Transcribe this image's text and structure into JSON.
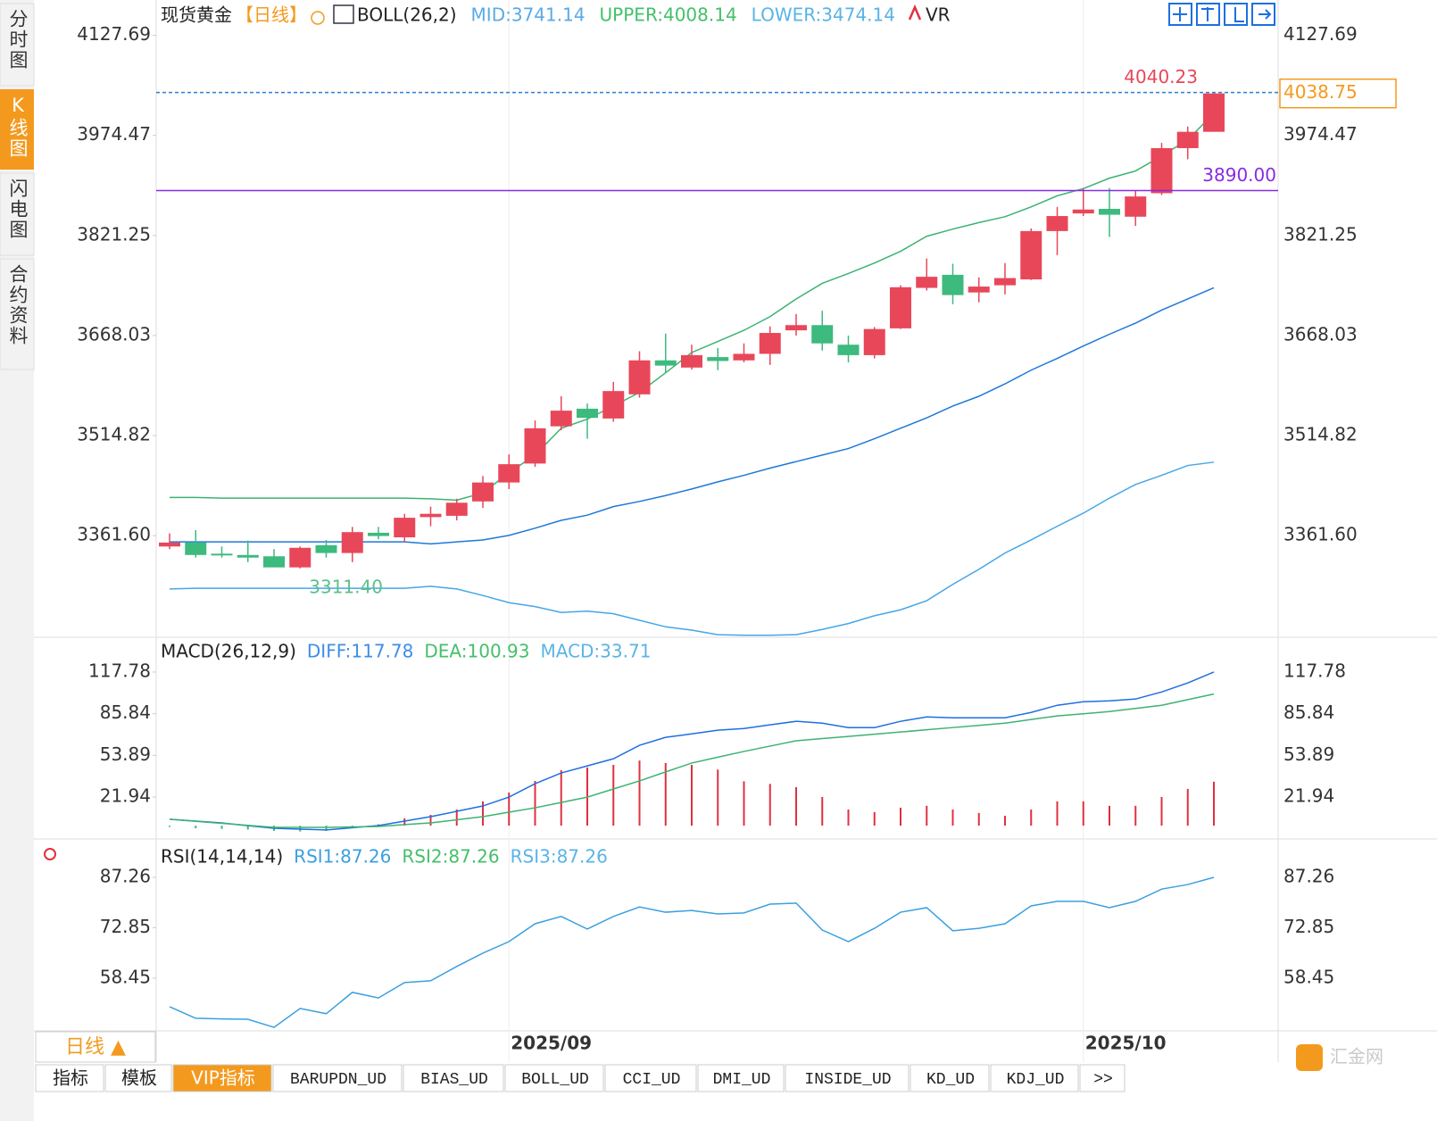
{
  "ui": {
    "sidebar": [
      "分时图",
      "K线图",
      "闪电图",
      "合约资料"
    ],
    "period_button": "日线 ▲",
    "tabs": [
      "指标",
      "模板",
      "VIP指标",
      "BARUPDN_UD",
      "BIAS_UD",
      "BOLL_UD",
      "CCI_UD",
      "DMI_UD",
      "INSIDE_UD",
      "KD_UD",
      "KDJ_UD",
      ">>"
    ],
    "watermark": "汇金网"
  },
  "chart_data": [
    {
      "type": "candlestick",
      "title": "现货黄金",
      "period": "【日线】",
      "indicator": "BOLL(26,2)",
      "extra": "VR",
      "categories": [
        null,
        null,
        null,
        null,
        null,
        null,
        null,
        null,
        null,
        null,
        null,
        null,
        null,
        "2025/09",
        null,
        null,
        null,
        null,
        null,
        null,
        null,
        null,
        null,
        null,
        null,
        null,
        null,
        null,
        null,
        null,
        null,
        null,
        null,
        null,
        null,
        "2025/10",
        null,
        null,
        null,
        null,
        null
      ],
      "open": [
        3345,
        3351,
        3334,
        3332,
        3330,
        3313,
        3347,
        3335,
        3366,
        3359,
        3390,
        3392,
        3414,
        3443,
        3472,
        3529,
        3556,
        3541,
        3578,
        3630,
        3619,
        3635,
        3630,
        3640,
        3676,
        3684,
        3654,
        3638,
        3679,
        3741,
        3761,
        3734,
        3745,
        3754,
        3828,
        3855,
        3862,
        3850,
        3886,
        3955,
        3980
      ],
      "high": [
        3365,
        3370,
        3345,
        3354,
        3341,
        3345,
        3355,
        3375,
        3375,
        3395,
        3406,
        3418,
        3453,
        3486,
        3538,
        3575,
        3564,
        3597,
        3644,
        3671,
        3654,
        3649,
        3656,
        3682,
        3701,
        3706,
        3668,
        3681,
        3745,
        3786,
        3778,
        3757,
        3779,
        3832,
        3865,
        3894,
        3894,
        3890,
        3963,
        3988,
        4040.23
      ],
      "low": [
        3341,
        3328,
        3328,
        3321,
        3314,
        3311.4,
        3328,
        3321,
        3356,
        3352,
        3376,
        3385,
        3404,
        3433,
        3467,
        3523,
        3510,
        3536,
        3573,
        3611,
        3616,
        3615,
        3627,
        3623,
        3668,
        3645,
        3627,
        3633,
        3678,
        3737,
        3716,
        3719,
        3731,
        3753,
        3791,
        3851,
        3819,
        3836,
        3883,
        3938,
        3980
      ],
      "close": [
        3351,
        3332,
        3332,
        3328,
        3313,
        3343,
        3335,
        3367,
        3361,
        3389,
        3395,
        3412,
        3443,
        3471,
        3526,
        3553,
        3542,
        3583,
        3630,
        3622,
        3638,
        3629,
        3640,
        3672,
        3684,
        3656,
        3638,
        3678,
        3742,
        3758,
        3730,
        3743,
        3756,
        3828,
        3851,
        3861,
        3853,
        3881,
        3955,
        3980,
        4038.75
      ],
      "up_color": "#e8475a",
      "down_color": "#3dba7e",
      "series": [
        {
          "label": "MID:3741.14",
          "color": "#1e78d8",
          "label_color": "#5aaae8",
          "values": [
            3352,
            3352,
            3352,
            3352,
            3352,
            3352,
            3352,
            3352,
            3352,
            3352,
            3349,
            3352,
            3355,
            3362,
            3373,
            3385,
            3393,
            3406,
            3414,
            3423,
            3433,
            3444,
            3454,
            3465,
            3475,
            3485,
            3495,
            3510,
            3526,
            3542,
            3560,
            3575,
            3594,
            3615,
            3633,
            3652,
            3670,
            3687,
            3707,
            3724,
            3741.14
          ]
        },
        {
          "label": "UPPER:4008.14",
          "color": "#3cb371",
          "label_color": "#44c06a",
          "values": [
            3420,
            3420,
            3419,
            3419,
            3419,
            3419,
            3419,
            3419,
            3419,
            3419,
            3418,
            3416,
            3427,
            3458,
            3485,
            3526,
            3540,
            3560,
            3581,
            3611,
            3642,
            3659,
            3676,
            3697,
            3724,
            3748,
            3763,
            3779,
            3797,
            3820,
            3831,
            3841,
            3850,
            3865,
            3882,
            3893,
            3909,
            3920,
            3943,
            3968,
            4008.14
          ]
        },
        {
          "label": "LOWER:3474.14",
          "color": "#46a6e8",
          "label_color": "#5ab4e6",
          "values": [
            3280,
            3281,
            3281,
            3281,
            3281,
            3281,
            3281,
            3281,
            3281,
            3281,
            3284,
            3280,
            3270,
            3259,
            3253,
            3244,
            3246,
            3242,
            3232,
            3222,
            3217,
            3210,
            3209,
            3209,
            3210,
            3218,
            3227,
            3239,
            3248,
            3262,
            3287,
            3310,
            3335,
            3355,
            3376,
            3396,
            3419,
            3440,
            3454,
            3469,
            3474.14
          ]
        }
      ],
      "ylim": [
        3206,
        4175
      ],
      "yticks": [
        4127.69,
        3974.47,
        3821.25,
        3668.03,
        3514.82,
        {
          "value": 3361.6,
          "label": "3361.60"
        }
      ],
      "hlines": [
        {
          "value": 4040.23,
          "label": "4040.23",
          "color": "#2a7fd4",
          "label_color": "#e8475a",
          "dashed": true
        },
        {
          "value": 3890,
          "label": "3890.00",
          "color": "#8a2be2",
          "label_color": "#8a2be2",
          "dashed": false
        }
      ],
      "annotations": [
        {
          "value": 3311.4,
          "label": "3311.40",
          "color": "#5cc08a"
        }
      ],
      "last_color": "#f39a1e"
    },
    {
      "type": "macd",
      "title": "MACD(26,12,9)",
      "series": [
        {
          "label": "DIFF:117.78",
          "color": "#1e6fe0",
          "label_color": "#3d8ee8",
          "values": [
            4.9,
            3.5,
            2.1,
            0,
            -2,
            -2.7,
            -3.3,
            -1.6,
            0.1,
            3.5,
            6.9,
            11,
            15.1,
            21.9,
            32.2,
            40.4,
            45.8,
            51.3,
            61.6,
            67.7,
            70.4,
            73.2,
            74.5,
            77.3,
            80,
            78.6,
            75.2,
            75.2,
            80,
            83.4,
            82.7,
            82.7,
            82.7,
            86.8,
            92.3,
            95,
            95.7,
            97.1,
            102.5,
            109.4,
            117.78
          ]
        },
        {
          "label": "DEA:100.93",
          "color": "#3cb371",
          "label_color": "#44c06a",
          "values": [
            4.9,
            3.3,
            1.8,
            0.2,
            -1.3,
            -1.3,
            -1.3,
            -1,
            -0.6,
            0.8,
            2.1,
            4.5,
            6.9,
            10.3,
            13.7,
            17.8,
            21.9,
            28.1,
            34.3,
            41.2,
            48,
            52.5,
            56.9,
            61,
            65.1,
            66.8,
            68.4,
            70.1,
            71.8,
            73.5,
            75.2,
            76.9,
            78.6,
            81.4,
            84.1,
            85.8,
            87.5,
            89.9,
            92.3,
            96.6,
            100.93
          ]
        }
      ],
      "bars": {
        "label": "MACD:33.71",
        "label_color": "#5ab4e6",
        "up_color": "#e03040",
        "down_color": "#3dba7e",
        "values": [
          -1,
          -2,
          -2.5,
          -3,
          -4,
          -4.5,
          -4,
          -2,
          1,
          5.6,
          8.3,
          12.4,
          18.6,
          25.4,
          34.3,
          42.5,
          44.6,
          46.6,
          49.9,
          48,
          46.6,
          43,
          34,
          32,
          29.5,
          22,
          12.4,
          10.4,
          13.8,
          15.2,
          12.4,
          9.7,
          7.6,
          12.4,
          18.6,
          18.6,
          15.2,
          15.2,
          22,
          28.2,
          33.71
        ]
      },
      "ylim": [
        -10.2,
        141.7
      ],
      "yticks": [
        117.78,
        85.84,
        53.89,
        21.94
      ]
    },
    {
      "type": "line",
      "title": "RSI(14,14,14)",
      "legend": [
        {
          "label": "RSI1:87.26",
          "color": "#3aa0e0"
        },
        {
          "label": "RSI2:87.26",
          "color": "#44c06a"
        },
        {
          "label": "RSI3:87.26",
          "color": "#5ab4e6"
        }
      ],
      "color": "#3aa0e0",
      "values": [
        50.3,
        47,
        46.8,
        46.7,
        44.4,
        49.8,
        48.3,
        54.4,
        52.8,
        57.2,
        57.7,
        61.8,
        65.6,
        68.9,
        74,
        76.1,
        72.5,
        76.1,
        78.8,
        77.3,
        77.8,
        76.8,
        77.1,
        79.6,
        79.9,
        72.2,
        68.9,
        72.7,
        77.3,
        78.6,
        72,
        72.7,
        74,
        79.1,
        80.4,
        80.4,
        78.6,
        80.4,
        83.9,
        85.2,
        87.26
      ],
      "ylim": [
        43.4,
        96.95
      ],
      "yticks": [
        87.26,
        72.85,
        58.45
      ]
    }
  ]
}
